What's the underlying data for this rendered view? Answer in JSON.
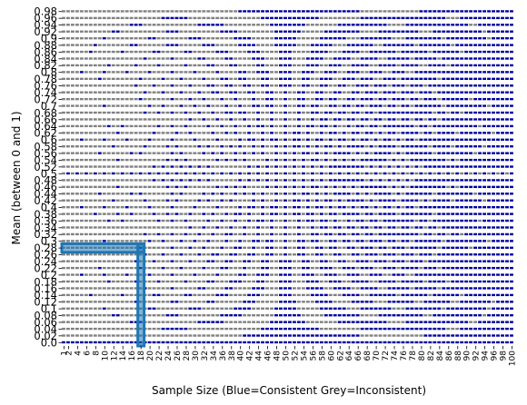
{
  "chart_data": {
    "type": "heatmap",
    "title": "",
    "xlabel": "Sample Size      (Blue=Consistent  Grey=Inconsistent)",
    "ylabel": "Mean (between 0 and 1)",
    "x": {
      "min": 1,
      "max": 100,
      "step": 1,
      "tick_labels_shown": [
        "1",
        "2",
        "4",
        "6",
        "8",
        "10",
        "12",
        "14",
        "16",
        "18",
        "20",
        "22",
        "24",
        "26",
        "28",
        "30",
        "32",
        "34",
        "36",
        "38",
        "40",
        "42",
        "44",
        "46",
        "48",
        "50",
        "52",
        "54",
        "56",
        "58",
        "60",
        "62",
        "64",
        "66",
        "68",
        "70",
        "72",
        "74",
        "76",
        "78",
        "80",
        "82",
        "84",
        "86",
        "88",
        "90",
        "92",
        "94",
        "96",
        "98",
        "100"
      ]
    },
    "y": {
      "min": 0.0,
      "max": 0.98,
      "step": 0.02,
      "tick_labels_shown": [
        "0.98",
        "0.96",
        "0.94",
        "0.92",
        "0.9",
        "0.88",
        "0.86",
        "0.84",
        "0.82",
        "0.8",
        "0.78",
        "0.76",
        "0.74",
        "0.72",
        "0.7",
        "0.68",
        "0.66",
        "0.64",
        "0.62",
        "0.6",
        "0.58",
        "0.56",
        "0.54",
        "0.52",
        "0.5",
        "0.48",
        "0.46",
        "0.44",
        "0.42",
        "0.4",
        "0.38",
        "0.36",
        "0.34",
        "0.32",
        "0.3",
        "0.28",
        "0.26",
        "0.24",
        "0.22",
        "0.2",
        "0.18",
        "0.16",
        "0.14",
        "0.12",
        "0.1",
        "0.08",
        "0.06",
        "0.04",
        "0.02",
        "0.0"
      ]
    },
    "cell_rule": "consistent when a mean with 2 decimals is attainable as k/n with integer k for sample size n",
    "highlight": {
      "sample_size": 18,
      "mean": 0.28
    },
    "colors": {
      "consistent": "#0000a0",
      "inconsistent": "#808080",
      "background": "#ffffff",
      "highlight": "#1f77b4"
    },
    "grid": false,
    "legend": "none"
  }
}
